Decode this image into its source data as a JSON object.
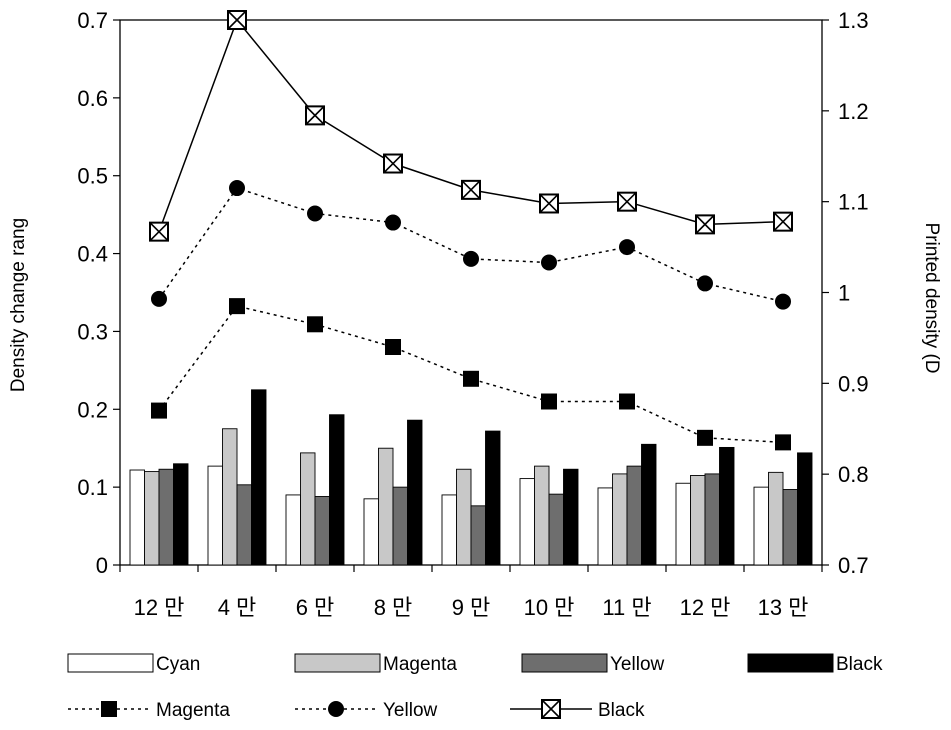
{
  "chart_data": {
    "type": "bar+line",
    "categories": [
      "12 만",
      "4 만",
      "6 만",
      "8 만",
      "9 만",
      "10 만",
      "11 만",
      "12 만",
      "13 만"
    ],
    "ylabel_left": "Density change rang",
    "ylabel_right": "Printed density (D",
    "ylim_left": [
      0,
      0.7
    ],
    "ylim_right": [
      0.7,
      1.3
    ],
    "yticks_left": [
      "0",
      "0.1",
      "0.2",
      "0.3",
      "0.4",
      "0.5",
      "0.6",
      "0.7"
    ],
    "yticks_right": [
      "0.7",
      "0.8",
      "0.9",
      "1",
      "1.1",
      "1.2",
      "1.3"
    ],
    "grid": false,
    "legend_position": "bottom",
    "bar_series": [
      {
        "name": "Cyan",
        "fill": "#ffffff",
        "values": [
          0.122,
          0.127,
          0.09,
          0.085,
          0.09,
          0.111,
          0.099,
          0.105,
          0.1
        ]
      },
      {
        "name": "Magenta",
        "fill": "#c8c8c8",
        "values": [
          0.12,
          0.175,
          0.144,
          0.15,
          0.123,
          0.127,
          0.117,
          0.115,
          0.119
        ]
      },
      {
        "name": "Yellow",
        "fill": "#6e6e6e",
        "values": [
          0.123,
          0.103,
          0.088,
          0.1,
          0.076,
          0.091,
          0.127,
          0.117,
          0.097
        ]
      },
      {
        "name": "Black",
        "fill": "#000000",
        "values": [
          0.13,
          0.225,
          0.193,
          0.186,
          0.172,
          0.123,
          0.155,
          0.151,
          0.144
        ]
      }
    ],
    "line_series": [
      {
        "name": "Magenta",
        "marker": "square",
        "dash": "dotted",
        "values": [
          0.87,
          0.985,
          0.965,
          0.94,
          0.905,
          0.88,
          0.88,
          0.84,
          0.835
        ]
      },
      {
        "name": "Yellow",
        "marker": "circle",
        "dash": "dotted",
        "values": [
          0.993,
          1.115,
          1.087,
          1.077,
          1.037,
          1.033,
          1.05,
          1.01,
          0.99
        ]
      },
      {
        "name": "Black",
        "marker": "crossed-square",
        "dash": "solid",
        "values": [
          1.067,
          1.3,
          1.195,
          1.142,
          1.113,
          1.098,
          1.1,
          1.075,
          1.078
        ]
      }
    ]
  }
}
